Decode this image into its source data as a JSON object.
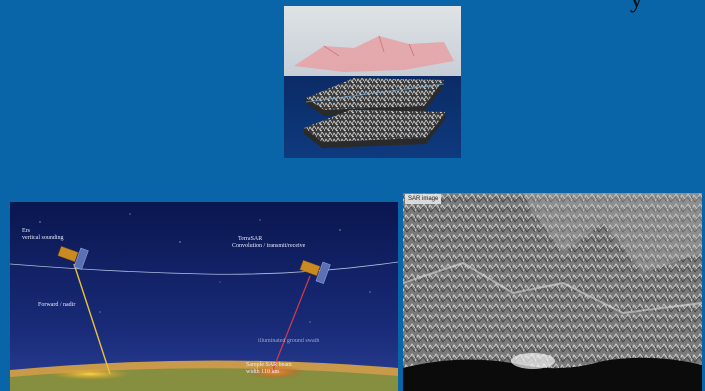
{
  "corner_glyph": "y",
  "satellite_scene": {
    "left_satellite": {
      "title": "Ers",
      "subtitle": "vertical sounding"
    },
    "left_beam_label": "Forward / nadir",
    "right_satellite": {
      "title": "TerraSAR",
      "subtitle": "Convolution / transmit/receive"
    },
    "right_beam_label": "Sample SAR beam\nwidth 110 km",
    "footprint_label": "illuminated ground swath"
  },
  "sar_image": {
    "caption": "SAR image"
  },
  "colors": {
    "background": "#0a64a8",
    "inset_sky": "#cdd4db",
    "inset_water": "#0c2f6e",
    "sat_sky": "#0c1b5c",
    "left_beam": "#e6c23a",
    "right_beam": "#d23a4a"
  },
  "icons": [
    "satellite-icon",
    "terrain-layer-icon"
  ]
}
